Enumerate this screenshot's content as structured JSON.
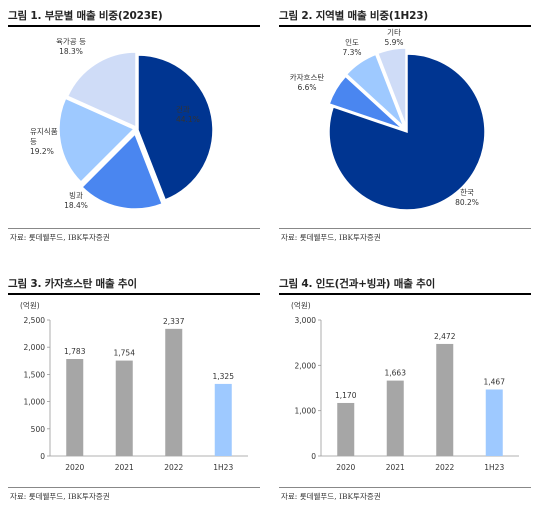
{
  "panels": [
    {
      "title": "그림 1. 부문별 매출 비중(2023E)",
      "source": "자료: 롯데웰푸드, IBK투자증권"
    },
    {
      "title": "그림 2. 지역별 매출 비중(1H23)",
      "source": "자료: 롯데웰푸드, IBK투자증권"
    },
    {
      "title": "그림 3. 카자흐스탄 매출 추이",
      "source": "자료: 롯데웰푸드, IBK투자증권"
    },
    {
      "title": "그림 4. 인도(건과+빙과) 매출 추이",
      "source": "자료: 롯데웰푸드, IBK투자증권"
    }
  ],
  "chart_data": [
    {
      "type": "pie",
      "title": "그림 1. 부문별 매출 비중(2023E)",
      "slices": [
        {
          "label": "건과",
          "value": 44.1,
          "value_label": "44.1%",
          "color": "#003591"
        },
        {
          "label": "빙과",
          "value": 18.4,
          "value_label": "18.4%",
          "color": "#4a86f0"
        },
        {
          "label": "유지식품\n등",
          "value": 19.2,
          "value_label": "19.2%",
          "color": "#9ec9ff"
        },
        {
          "label": "육가공 등",
          "value": 18.3,
          "value_label": "18.3%",
          "color": "#cfdcf7"
        }
      ]
    },
    {
      "type": "pie",
      "title": "그림 2. 지역별 매출 비중(1H23)",
      "slices": [
        {
          "label": "한국",
          "value": 80.2,
          "value_label": "80.2%",
          "color": "#003591"
        },
        {
          "label": "카자흐스탄",
          "value": 6.6,
          "value_label": "6.6%",
          "color": "#4a86f0"
        },
        {
          "label": "인도",
          "value": 7.3,
          "value_label": "7.3%",
          "color": "#9ec9ff"
        },
        {
          "label": "기타",
          "value": 5.9,
          "value_label": "5.9%",
          "color": "#cfdcf7"
        }
      ]
    },
    {
      "type": "bar",
      "title": "그림 3. 카자흐스탄 매출 추이",
      "unit": "(억원)",
      "categories": [
        "2020",
        "2021",
        "2022",
        "1H23"
      ],
      "values": [
        1783,
        1754,
        2337,
        1325
      ],
      "value_labels": [
        "1,783",
        "1,754",
        "2,337",
        "1,325"
      ],
      "colors": [
        "#a6a6a6",
        "#a6a6a6",
        "#a6a6a6",
        "#9ec9ff"
      ],
      "ylim": [
        0,
        2500
      ],
      "yticks": [
        0,
        500,
        1000,
        1500,
        2000,
        2500
      ],
      "ytick_labels": [
        "0",
        "500",
        "1,000",
        "1,500",
        "2,000",
        "2,500"
      ]
    },
    {
      "type": "bar",
      "title": "그림 4. 인도(건과+빙과) 매출 추이",
      "unit": "(억원)",
      "categories": [
        "2020",
        "2021",
        "2022",
        "1H23"
      ],
      "values": [
        1170,
        1663,
        2472,
        1467
      ],
      "value_labels": [
        "1,170",
        "1,663",
        "2,472",
        "1,467"
      ],
      "colors": [
        "#a6a6a6",
        "#a6a6a6",
        "#a6a6a6",
        "#9ec9ff"
      ],
      "ylim": [
        0,
        3000
      ],
      "yticks": [
        0,
        1000,
        2000,
        3000
      ],
      "ytick_labels": [
        "0",
        "1,000",
        "2,000",
        "3,000"
      ]
    }
  ]
}
